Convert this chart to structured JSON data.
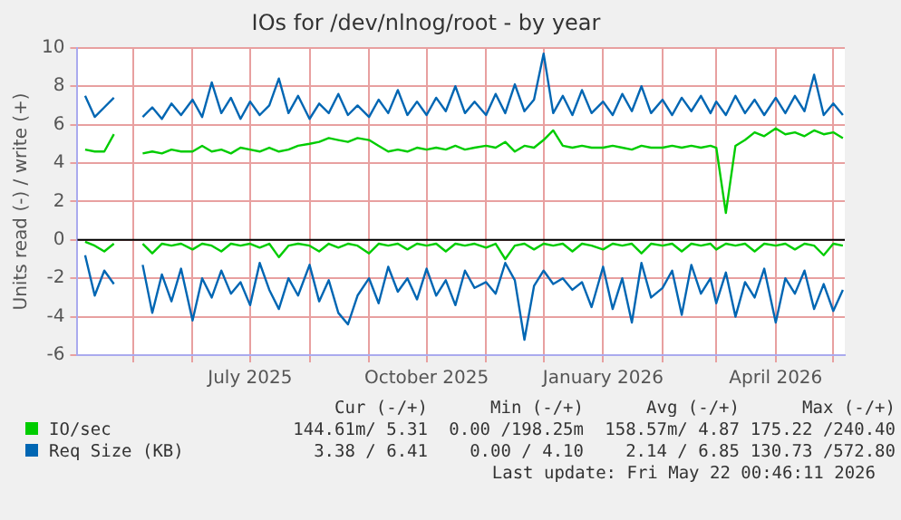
{
  "chart_data": {
    "type": "line",
    "title": "IOs for /dev/nlnog/root - by year",
    "ylabel": "Units read (-) / write (+)",
    "x": [
      "2025-04-06",
      "2025-04-11",
      "2025-04-16",
      "2025-04-21",
      "2025-04-26",
      "2025-05-01",
      "2025-05-06",
      "2025-05-11",
      "2025-05-16",
      "2025-05-21",
      "2025-05-26",
      "2025-06-01",
      "2025-06-06",
      "2025-06-11",
      "2025-06-16",
      "2025-06-21",
      "2025-06-26",
      "2025-07-01",
      "2025-07-06",
      "2025-07-11",
      "2025-07-16",
      "2025-07-21",
      "2025-07-26",
      "2025-08-01",
      "2025-08-06",
      "2025-08-11",
      "2025-08-16",
      "2025-08-21",
      "2025-08-26",
      "2025-09-01",
      "2025-09-06",
      "2025-09-11",
      "2025-09-16",
      "2025-09-21",
      "2025-09-26",
      "2025-10-01",
      "2025-10-06",
      "2025-10-11",
      "2025-10-16",
      "2025-10-21",
      "2025-10-26",
      "2025-11-01",
      "2025-11-06",
      "2025-11-11",
      "2025-11-16",
      "2025-11-21",
      "2025-11-26",
      "2025-12-01",
      "2025-12-06",
      "2025-12-11",
      "2025-12-16",
      "2025-12-21",
      "2025-12-26",
      "2026-01-01",
      "2026-01-06",
      "2026-01-11",
      "2026-01-16",
      "2026-01-21",
      "2026-01-26",
      "2026-02-01",
      "2026-02-06",
      "2026-02-11",
      "2026-02-16",
      "2026-02-21",
      "2026-02-26",
      "2026-03-01",
      "2026-03-06",
      "2026-03-11",
      "2026-03-16",
      "2026-03-21",
      "2026-03-26",
      "2026-04-01",
      "2026-04-06",
      "2026-04-11",
      "2026-04-16",
      "2026-04-21",
      "2026-04-26",
      "2026-05-01",
      "2026-05-06"
    ],
    "series": [
      {
        "name": "IO/sec",
        "color": "#00cc00",
        "values": [
          4.7,
          4.6,
          4.6,
          5.5,
          null,
          null,
          4.5,
          4.6,
          4.5,
          4.7,
          4.6,
          4.6,
          4.9,
          4.6,
          4.7,
          4.5,
          4.8,
          4.7,
          4.6,
          4.8,
          4.6,
          4.7,
          4.9,
          5.0,
          5.1,
          5.3,
          5.2,
          5.1,
          5.3,
          5.2,
          4.9,
          4.6,
          4.7,
          4.6,
          4.8,
          4.7,
          4.8,
          4.7,
          4.9,
          4.7,
          4.8,
          4.9,
          4.8,
          5.1,
          4.6,
          4.9,
          4.8,
          5.2,
          5.7,
          4.9,
          4.8,
          4.9,
          4.8,
          4.8,
          4.9,
          4.8,
          4.7,
          4.9,
          4.8,
          4.8,
          4.9,
          4.8,
          4.9,
          4.8,
          4.9,
          4.8,
          1.4,
          4.9,
          5.2,
          5.6,
          5.4,
          5.8,
          5.5,
          5.6,
          5.4,
          5.7,
          5.5,
          5.6,
          5.3
        ]
      },
      {
        "name": "Req Size (KB)",
        "color": "#0066b3",
        "values": [
          7.5,
          6.4,
          6.9,
          7.4,
          null,
          null,
          6.4,
          6.9,
          6.3,
          7.1,
          6.5,
          7.3,
          6.4,
          8.2,
          6.6,
          7.4,
          6.3,
          7.2,
          6.5,
          7.0,
          8.4,
          6.6,
          7.5,
          6.3,
          7.1,
          6.6,
          7.6,
          6.5,
          7.0,
          6.4,
          7.3,
          6.6,
          7.8,
          6.5,
          7.2,
          6.5,
          7.4,
          6.7,
          8.0,
          6.6,
          7.2,
          6.5,
          7.6,
          6.6,
          8.1,
          6.7,
          7.3,
          9.7,
          6.6,
          7.5,
          6.5,
          7.8,
          6.6,
          7.2,
          6.5,
          7.6,
          6.7,
          8.0,
          6.6,
          7.3,
          6.5,
          7.4,
          6.7,
          7.5,
          6.6,
          7.2,
          6.5,
          7.5,
          6.6,
          7.3,
          6.5,
          7.4,
          6.6,
          7.5,
          6.7,
          8.6,
          6.5,
          7.1,
          6.5
        ]
      },
      {
        "color": "#00cc00",
        "values": [
          -0.1,
          -0.3,
          -0.6,
          -0.2,
          null,
          null,
          -0.2,
          -0.7,
          -0.2,
          -0.3,
          -0.2,
          -0.5,
          -0.2,
          -0.3,
          -0.6,
          -0.2,
          -0.3,
          -0.2,
          -0.4,
          -0.2,
          -0.9,
          -0.3,
          -0.2,
          -0.3,
          -0.6,
          -0.2,
          -0.4,
          -0.2,
          -0.3,
          -0.7,
          -0.2,
          -0.3,
          -0.2,
          -0.5,
          -0.2,
          -0.3,
          -0.2,
          -0.6,
          -0.2,
          -0.3,
          -0.2,
          -0.4,
          -0.2,
          -1.0,
          -0.3,
          -0.2,
          -0.5,
          -0.2,
          -0.3,
          -0.2,
          -0.6,
          -0.2,
          -0.3,
          -0.5,
          -0.2,
          -0.3,
          -0.2,
          -0.7,
          -0.2,
          -0.3,
          -0.2,
          -0.6,
          -0.2,
          -0.3,
          -0.2,
          -0.5,
          -0.2,
          -0.3,
          -0.2,
          -0.6,
          -0.2,
          -0.3,
          -0.2,
          -0.5,
          -0.2,
          -0.3,
          -0.8,
          -0.2,
          -0.3
        ]
      },
      {
        "color": "#0066b3",
        "values": [
          -0.8,
          -2.9,
          -1.6,
          -2.3,
          null,
          null,
          -1.3,
          -3.8,
          -1.8,
          -3.2,
          -1.5,
          -4.2,
          -2.0,
          -3.0,
          -1.6,
          -2.8,
          -2.2,
          -3.4,
          -1.2,
          -2.6,
          -3.6,
          -2.0,
          -2.9,
          -1.3,
          -3.2,
          -2.1,
          -3.8,
          -4.4,
          -2.9,
          -2.0,
          -3.3,
          -1.4,
          -2.7,
          -2.0,
          -3.1,
          -1.5,
          -2.9,
          -2.1,
          -3.4,
          -1.6,
          -2.5,
          -2.2,
          -2.8,
          -1.2,
          -2.1,
          -5.2,
          -2.4,
          -1.6,
          -2.3,
          -2.0,
          -2.6,
          -2.2,
          -3.5,
          -1.4,
          -3.6,
          -2.0,
          -4.3,
          -1.2,
          -3.0,
          -2.5,
          -1.6,
          -3.9,
          -1.3,
          -2.8,
          -2.0,
          -3.3,
          -1.7,
          -4.0,
          -2.2,
          -3.0,
          -1.5,
          -4.3,
          -2.0,
          -2.8,
          -1.6,
          -3.6,
          -2.3,
          -3.7,
          -2.6
        ]
      }
    ],
    "xlim": [
      "2025-04-02",
      "2026-05-07"
    ],
    "xticks": [
      {
        "value": "2025-05-01",
        "label": null
      },
      {
        "value": "2025-06-01",
        "label": null
      },
      {
        "value": "2025-07-01",
        "label": "July 2025"
      },
      {
        "value": "2025-08-01",
        "label": null
      },
      {
        "value": "2025-09-01",
        "label": null
      },
      {
        "value": "2025-10-01",
        "label": "October 2025"
      },
      {
        "value": "2025-11-01",
        "label": null
      },
      {
        "value": "2025-12-01",
        "label": null
      },
      {
        "value": "2026-01-01",
        "label": "January 2026"
      },
      {
        "value": "2026-02-01",
        "label": null
      },
      {
        "value": "2026-03-01",
        "label": null
      },
      {
        "value": "2026-04-01",
        "label": "April 2026"
      },
      {
        "value": "2026-05-01",
        "label": null
      }
    ],
    "ylim": [
      -6,
      10
    ],
    "yticks": [
      -6,
      -4,
      -2,
      0,
      2,
      4,
      6,
      8,
      10
    ],
    "ref_lines": [
      {
        "axis": "y",
        "value": 0,
        "color": "#000000"
      }
    ],
    "grid": true,
    "legend": "bottom",
    "marker": "none",
    "line_style": "solid",
    "annotations": [
      "Cur (-/+)",
      "Min (-/+)",
      "Avg (-/+)",
      "Max (-/+)",
      "144.61m/ 5.31",
      "0.00 /198.25m",
      "158.57m/ 4.87",
      "175.22 /240.40",
      "3.38 / 6.41",
      "0.00 / 4.10",
      "2.14 / 6.85",
      "130.73 /572.80",
      "Last update: Fri May 22 00:46:11 2026"
    ]
  }
}
